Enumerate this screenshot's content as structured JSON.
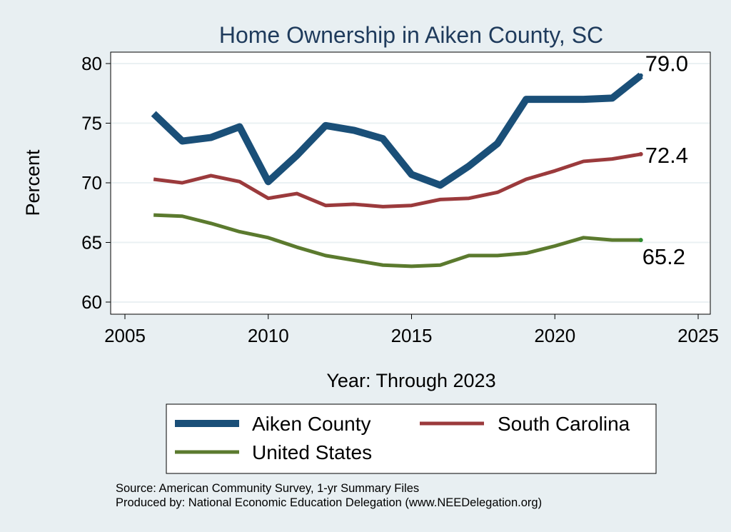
{
  "chart_data": {
    "type": "line",
    "title": "Home Ownership in Aiken County, SC",
    "xlabel": "Year: Through 2023",
    "ylabel": "Percent",
    "xlim": [
      2005,
      2025
    ],
    "ylim": [
      60,
      80
    ],
    "xticks": [
      "2005",
      "2010",
      "2015",
      "2020",
      "2025"
    ],
    "yticks": [
      "60",
      "65",
      "70",
      "75",
      "80"
    ],
    "grid": true,
    "legend_position": "bottom",
    "series": [
      {
        "name": "Aiken County",
        "color": "#1a4f78",
        "x": [
          2006,
          2007,
          2008,
          2009,
          2010,
          2011,
          2012,
          2013,
          2014,
          2015,
          2016,
          2017,
          2018,
          2019,
          2020,
          2021,
          2022,
          2023
        ],
        "values": [
          75.8,
          73.5,
          73.8,
          74.7,
          70.1,
          72.3,
          74.8,
          74.4,
          73.7,
          70.7,
          69.8,
          71.4,
          73.3,
          77.0,
          77.0,
          77.0,
          77.1,
          79.0
        ],
        "end_label": "79.0"
      },
      {
        "name": "South Carolina",
        "color": "#9b3a3c",
        "x": [
          2006,
          2007,
          2008,
          2009,
          2010,
          2011,
          2012,
          2013,
          2014,
          2015,
          2016,
          2017,
          2018,
          2019,
          2020,
          2021,
          2022,
          2023
        ],
        "values": [
          70.3,
          70.0,
          70.6,
          70.1,
          68.7,
          69.1,
          68.1,
          68.2,
          68.0,
          68.1,
          68.6,
          68.7,
          69.2,
          70.3,
          71.0,
          71.8,
          72.0,
          72.4
        ],
        "end_label": "72.4"
      },
      {
        "name": "United States",
        "color": "#5b7a2e",
        "x": [
          2006,
          2007,
          2008,
          2009,
          2010,
          2011,
          2012,
          2013,
          2014,
          2015,
          2016,
          2017,
          2018,
          2019,
          2020,
          2021,
          2022,
          2023
        ],
        "values": [
          67.3,
          67.2,
          66.6,
          65.9,
          65.4,
          64.6,
          63.9,
          63.5,
          63.1,
          63.0,
          63.1,
          63.9,
          63.9,
          64.1,
          64.7,
          65.4,
          65.2,
          65.2
        ],
        "end_label": "65.2"
      }
    ]
  },
  "legend": {
    "items": [
      "Aiken County",
      "South Carolina",
      "United States"
    ]
  },
  "notes": {
    "source": "Source: American Community Survey, 1-yr Summary Files",
    "produced_by": "Produced by: National Economic Education Delegation (www.NEEDelegation.org)"
  }
}
